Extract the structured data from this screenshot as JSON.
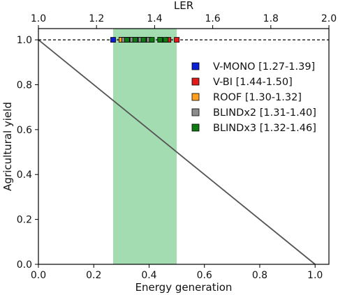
{
  "chart_data": {
    "type": "scatter",
    "title": "",
    "xlabel": "Energy generation",
    "ylabel": "Agricultural yield",
    "top_xlabel": "LER",
    "xlim": [
      0.0,
      1.05
    ],
    "ylim": [
      0.0,
      1.05
    ],
    "top_xlim": [
      1.0,
      2.0
    ],
    "x_ticks": [
      0.0,
      0.2,
      0.4,
      0.6,
      0.8,
      1.0
    ],
    "x_tick_labels": [
      "0.0",
      "0.2",
      "0.4",
      "0.6",
      "0.8",
      "1.0"
    ],
    "y_ticks": [
      0.0,
      0.2,
      0.4,
      0.6,
      0.8,
      1.0
    ],
    "y_tick_labels": [
      "0.0",
      "0.2",
      "0.4",
      "0.6",
      "0.8",
      "1.0"
    ],
    "top_ticks": [
      1.0,
      1.2,
      1.4,
      1.6,
      1.8,
      2.0
    ],
    "top_tick_labels": [
      "1.0",
      "1.2",
      "1.4",
      "1.6",
      "1.8",
      "2.0"
    ],
    "shaded_band": {
      "x": [
        0.27,
        0.5
      ],
      "color": "#a3dcb0"
    },
    "diagonal_line": {
      "x": [
        0.0,
        1.0
      ],
      "y": [
        1.0,
        0.0
      ],
      "color": "#555555"
    },
    "reference_line": {
      "y": 1.0,
      "style": "dashed",
      "color": "#000000"
    },
    "grid": false,
    "legend_position": "right",
    "series": [
      {
        "name": "V-MONO [1.27-1.39]",
        "color": "#0a1fd6",
        "x": [
          0.27,
          0.3,
          0.33,
          0.36,
          0.39
        ],
        "y": [
          1.0,
          1.0,
          1.0,
          1.0,
          1.0
        ]
      },
      {
        "name": "V-BI [1.44-1.50]",
        "color": "#e31a1c",
        "x": [
          0.44,
          0.47,
          0.5
        ],
        "y": [
          1.0,
          1.0,
          1.0
        ]
      },
      {
        "name": "ROOF [1.30-1.32]",
        "color": "#ff9f1c",
        "x": [
          0.3,
          0.32
        ],
        "y": [
          1.0,
          1.0
        ]
      },
      {
        "name": "BLINDx2 [1.31-1.40]",
        "color": "#8c8c8c",
        "x": [
          0.31,
          0.34,
          0.37,
          0.4
        ],
        "y": [
          1.0,
          1.0,
          1.0,
          1.0
        ]
      },
      {
        "name": "BLINDx3 [1.32-1.46]",
        "color": "#0f7a0f",
        "x": [
          0.32,
          0.35,
          0.38,
          0.41,
          0.44,
          0.46
        ],
        "y": [
          1.0,
          1.0,
          1.0,
          1.0,
          1.0,
          1.0
        ]
      }
    ]
  }
}
